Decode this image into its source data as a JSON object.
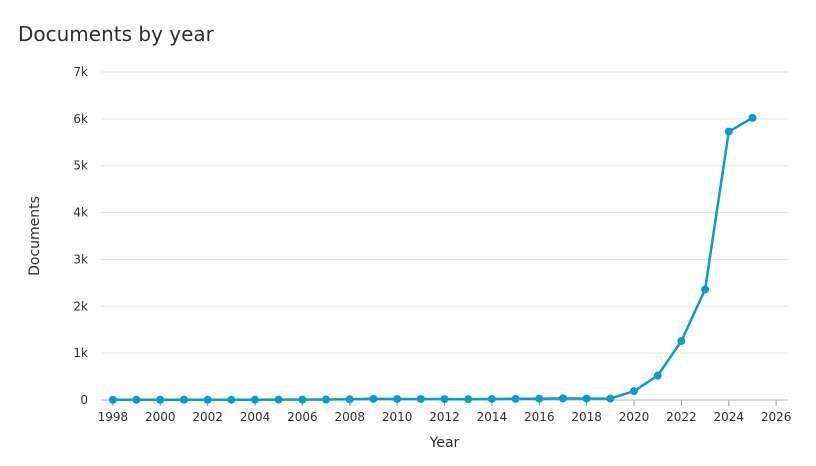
{
  "chart_data": {
    "type": "line",
    "title": "Documents by year",
    "xlabel": "Year",
    "ylabel": "Documents",
    "x": [
      1998,
      1999,
      2000,
      2001,
      2002,
      2003,
      2004,
      2005,
      2006,
      2007,
      2008,
      2009,
      2010,
      2011,
      2012,
      2013,
      2014,
      2015,
      2016,
      2017,
      2018,
      2019,
      2020,
      2021,
      2022,
      2023,
      2024,
      2025
    ],
    "series": [
      {
        "name": "",
        "values": [
          5,
          5,
          5,
          5,
          5,
          6,
          7,
          8,
          8,
          10,
          15,
          25,
          22,
          22,
          20,
          18,
          22,
          25,
          28,
          35,
          30,
          30,
          190,
          520,
          1260,
          2360,
          5730,
          6020
        ]
      }
    ],
    "xlim": [
      1997.5,
      2026.5
    ],
    "ylim": [
      0,
      7000
    ],
    "x_ticks": [
      1998,
      2000,
      2002,
      2004,
      2006,
      2008,
      2010,
      2012,
      2014,
      2016,
      2018,
      2020,
      2022,
      2024,
      2026
    ],
    "x_tick_labels": [
      "1998",
      "2000",
      "2002",
      "2004",
      "2006",
      "2008",
      "2010",
      "2012",
      "2014",
      "2016",
      "2018",
      "2020",
      "2022",
      "2024",
      "2026"
    ],
    "y_ticks": [
      0,
      1000,
      2000,
      3000,
      4000,
      5000,
      6000,
      7000
    ],
    "y_tick_labels": [
      "0",
      "1k",
      "2k",
      "3k",
      "4k",
      "5k",
      "6k",
      "7k"
    ],
    "grid": true,
    "legend": "none",
    "line_color": "#0a9bcd",
    "grid_color": "#e3e3e3"
  }
}
